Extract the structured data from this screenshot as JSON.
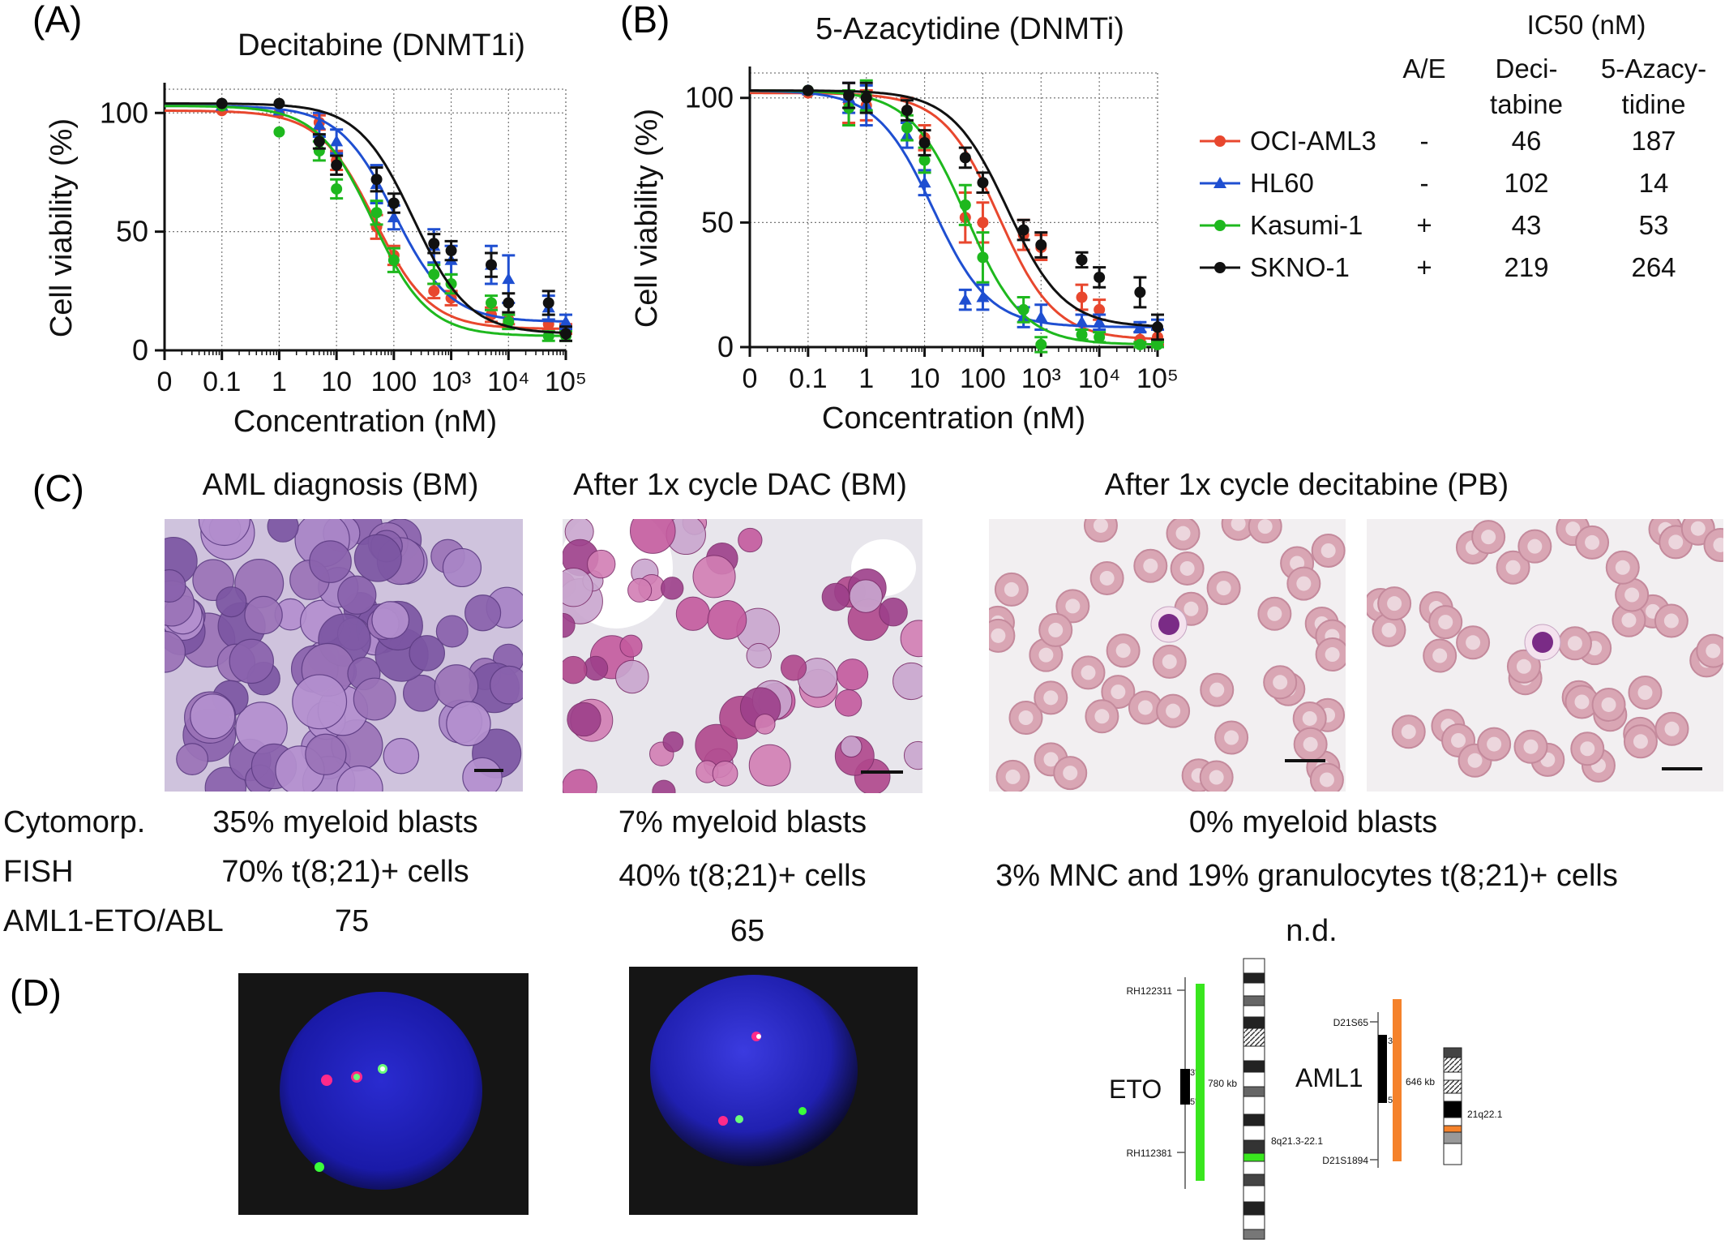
{
  "panel_letters": {
    "a": "(A)",
    "b": "(B)",
    "c": "(C)",
    "d": "(D)"
  },
  "chart_data": [
    {
      "type": "scatter",
      "panel": "A",
      "title": "Decitabine (DNMT1i)",
      "xlabel": "Concentration (nM)",
      "ylabel": "Cell viability (%)",
      "x_scale": "log",
      "x_ticks": [
        "0",
        "0.1",
        "1",
        "10",
        "100",
        "10³",
        "10⁴",
        "10⁵"
      ],
      "y_ticks": [
        "0",
        "50",
        "100"
      ],
      "ylim": [
        0,
        110
      ],
      "grid": "dotted",
      "series": [
        {
          "name": "OCI-AML3",
          "color": "#e8472e",
          "marker": "circle",
          "ic50": 46,
          "points": [
            [
              0.1,
              101
            ],
            [
              1,
              100
            ],
            [
              5,
              96
            ],
            [
              10,
              80
            ],
            [
              50,
              52
            ],
            [
              100,
              40
            ],
            [
              500,
              25
            ],
            [
              1000,
              22
            ],
            [
              5000,
              15
            ],
            [
              10000,
              13
            ],
            [
              50000,
              11
            ],
            [
              100000,
              9
            ]
          ],
          "errors": [
            0,
            0,
            3,
            4,
            5,
            4,
            3,
            3,
            3,
            2,
            2,
            2
          ]
        },
        {
          "name": "HL60",
          "color": "#1f4fd1",
          "marker": "triangle",
          "ic50": 102,
          "points": [
            [
              0.1,
              103
            ],
            [
              1,
              101
            ],
            [
              5,
              95
            ],
            [
              10,
              88
            ],
            [
              50,
              70
            ],
            [
              100,
              56
            ],
            [
              500,
              44
            ],
            [
              1000,
              38
            ],
            [
              5000,
              36
            ],
            [
              10000,
              30
            ],
            [
              50000,
              18
            ],
            [
              100000,
              12
            ]
          ],
          "errors": [
            0,
            0,
            5,
            5,
            8,
            5,
            7,
            6,
            8,
            10,
            5,
            3
          ]
        },
        {
          "name": "Kasumi-1",
          "color": "#1eb81e",
          "marker": "circle",
          "ic50": 43,
          "points": [
            [
              0.1,
              103
            ],
            [
              1,
              92
            ],
            [
              5,
              84
            ],
            [
              10,
              68
            ],
            [
              50,
              58
            ],
            [
              100,
              38
            ],
            [
              500,
              32
            ],
            [
              1000,
              28
            ],
            [
              5000,
              20
            ],
            [
              10000,
              12
            ],
            [
              50000,
              6
            ],
            [
              100000,
              6
            ]
          ],
          "errors": [
            0,
            0,
            4,
            4,
            5,
            5,
            4,
            4,
            3,
            3,
            2,
            2
          ]
        },
        {
          "name": "SKNO-1",
          "color": "#111111",
          "marker": "circle",
          "ic50": 219,
          "points": [
            [
              0.1,
              104
            ],
            [
              1,
              104
            ],
            [
              5,
              88
            ],
            [
              10,
              78
            ],
            [
              50,
              72
            ],
            [
              100,
              62
            ],
            [
              500,
              45
            ],
            [
              1000,
              42
            ],
            [
              5000,
              36
            ],
            [
              10000,
              20
            ],
            [
              50000,
              20
            ],
            [
              100000,
              7
            ]
          ],
          "errors": [
            0,
            0,
            3,
            4,
            5,
            4,
            4,
            4,
            5,
            4,
            5,
            3
          ]
        }
      ]
    },
    {
      "type": "scatter",
      "panel": "B",
      "title": "5-Azacytidine (DNMTi)",
      "xlabel": "Concentration (nM)",
      "ylabel": "Cell viability (%)",
      "x_scale": "log",
      "x_ticks": [
        "0",
        "0.1",
        "1",
        "10",
        "100",
        "10³",
        "10⁴",
        "10⁵"
      ],
      "y_ticks": [
        "0",
        "50",
        "100"
      ],
      "ylim": [
        0,
        110
      ],
      "grid": "dotted",
      "series": [
        {
          "name": "OCI-AML3",
          "color": "#e8472e",
          "marker": "circle",
          "ic50": 187,
          "points": [
            [
              0.1,
              102
            ],
            [
              0.5,
              98
            ],
            [
              1,
              97
            ],
            [
              5,
              95
            ],
            [
              10,
              84
            ],
            [
              50,
              52
            ],
            [
              100,
              50
            ],
            [
              500,
              45
            ],
            [
              1000,
              40
            ],
            [
              5000,
              20
            ],
            [
              10000,
              15
            ],
            [
              50000,
              3
            ],
            [
              100000,
              4
            ]
          ],
          "errors": [
            0,
            8,
            6,
            5,
            5,
            10,
            8,
            6,
            5,
            5,
            4,
            3,
            3
          ]
        },
        {
          "name": "HL60",
          "color": "#1f4fd1",
          "marker": "triangle",
          "ic50": 14,
          "points": [
            [
              0.1,
              103
            ],
            [
              0.5,
              100
            ],
            [
              1,
              97
            ],
            [
              5,
              85
            ],
            [
              10,
              66
            ],
            [
              50,
              19
            ],
            [
              100,
              20
            ],
            [
              500,
              12
            ],
            [
              1000,
              12
            ],
            [
              5000,
              10
            ],
            [
              10000,
              10
            ],
            [
              50000,
              8
            ],
            [
              100000,
              9
            ]
          ],
          "errors": [
            0,
            6,
            8,
            5,
            5,
            4,
            5,
            4,
            5,
            3,
            3,
            2,
            2
          ]
        },
        {
          "name": "Kasumi-1",
          "color": "#1eb81e",
          "marker": "circle",
          "ic50": 53,
          "points": [
            [
              0.1,
              103
            ],
            [
              0.5,
              96
            ],
            [
              1,
              101
            ],
            [
              5,
              88
            ],
            [
              10,
              75
            ],
            [
              50,
              57
            ],
            [
              100,
              36
            ],
            [
              500,
              15
            ],
            [
              1000,
              1
            ],
            [
              5000,
              5
            ],
            [
              10000,
              4
            ],
            [
              50000,
              1
            ],
            [
              100000,
              1
            ]
          ],
          "errors": [
            0,
            7,
            6,
            5,
            5,
            8,
            10,
            5,
            3,
            2,
            2,
            1,
            1
          ]
        },
        {
          "name": "SKNO-1",
          "color": "#111111",
          "marker": "circle",
          "ic50": 264,
          "points": [
            [
              0.1,
              103
            ],
            [
              0.5,
              101
            ],
            [
              1,
              100
            ],
            [
              5,
              95
            ],
            [
              10,
              82
            ],
            [
              50,
              76
            ],
            [
              100,
              66
            ],
            [
              500,
              47
            ],
            [
              1000,
              41
            ],
            [
              5000,
              35
            ],
            [
              10000,
              28
            ],
            [
              50000,
              22
            ],
            [
              100000,
              8
            ]
          ],
          "errors": [
            0,
            5,
            6,
            4,
            5,
            4,
            4,
            4,
            5,
            3,
            4,
            6,
            5
          ]
        }
      ]
    }
  ],
  "legend": {
    "ic50_header": "IC50 (nM)",
    "col_ae": "A/E",
    "col_deci_1": "Deci-",
    "col_deci_2": "tabine",
    "col_aza_1": "5-Azacy-",
    "col_aza_2": "tidine",
    "rows": [
      {
        "name": "OCI-AML3",
        "ae": "-",
        "deci": "46",
        "aza": "187"
      },
      {
        "name": "HL60",
        "ae": "-",
        "deci": "102",
        "aza": "14"
      },
      {
        "name": "Kasumi-1",
        "ae": "+",
        "deci": "43",
        "aza": "53"
      },
      {
        "name": "SKNO-1",
        "ae": "+",
        "deci": "219",
        "aza": "264"
      }
    ]
  },
  "panel_c": {
    "title_1": "AML diagnosis (BM)",
    "title_2": "After 1x cycle DAC (BM)",
    "title_3": "After 1x cycle decitabine (PB)",
    "row_labels": {
      "cyto": "Cytomorp.",
      "fish": "FISH",
      "ratio": "AML1-ETO/ABL"
    },
    "col1": {
      "cyto": "35% myeloid blasts",
      "fish": "70% t(8;21)+ cells",
      "ratio": "75"
    },
    "col2": {
      "cyto": "7% myeloid blasts",
      "fish": "40% t(8;21)+ cells",
      "ratio": "65"
    },
    "col3": {
      "cyto": "0% myeloid blasts",
      "fish": "3% MNC  and 19% granulocytes t(8;21)+ cells",
      "ratio": "n.d."
    }
  },
  "panel_d": {
    "eto": {
      "gene": "ETO",
      "probe_top": "RH122311",
      "probe_bottom": "RH112381",
      "size": "780 kb",
      "band": "8q21.3-22.1",
      "p3": "3'",
      "p5": "5'"
    },
    "aml1": {
      "gene": "AML1",
      "probe_top": "D21S65",
      "probe_bottom": "D21S1894",
      "size": "646 kb",
      "band": "21q22.1",
      "p3": "3'",
      "p5": "5'"
    }
  }
}
